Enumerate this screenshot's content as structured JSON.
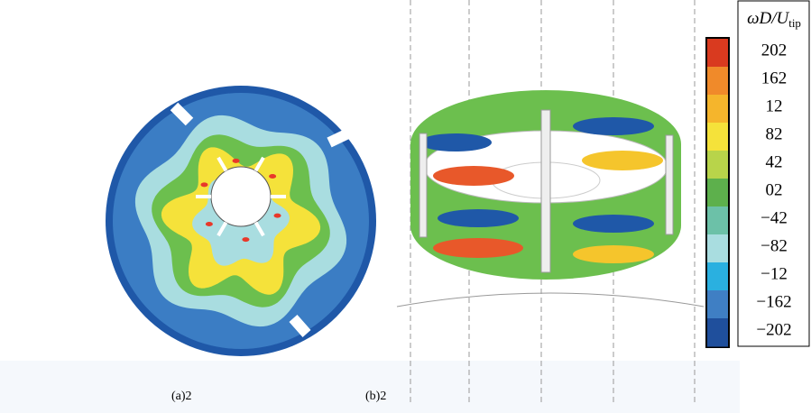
{
  "panels": [
    {
      "caption": "(a)2"
    },
    {
      "caption": "(b)2"
    }
  ],
  "colorbar": {
    "title": "ωD/U",
    "title_sub": "tip",
    "labels": [
      "202",
      "162",
      "12",
      "82",
      "42",
      "02",
      "−42",
      "−82",
      "−12",
      "−162",
      "−202"
    ]
  }
}
